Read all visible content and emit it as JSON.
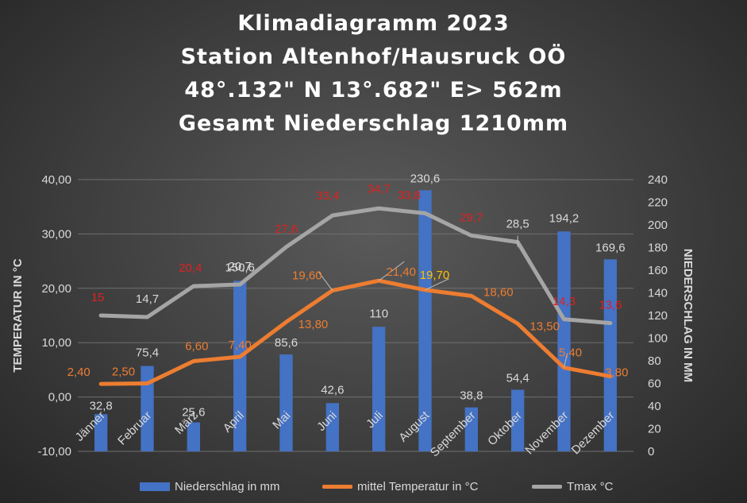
{
  "title_lines": [
    "Klimadiagramm 2023",
    "Station Altenhof/Hausruck OÖ",
    "48°.132\" N 13°.682\" E> 562m",
    "Gesamt Niederschlag 1210mm"
  ],
  "colors": {
    "bar": "#4472c4",
    "temp_line": "#ed7d31",
    "tmax_line": "#a5a5a5",
    "tmax_label": "#e02020",
    "temp_label": "#ed7d31",
    "temp_label_highlight": "#ffc000",
    "axis_text": "#d9d9d9"
  },
  "chart_data": {
    "type": "bar",
    "categories": [
      "Jänner",
      "Februar",
      "März",
      "April",
      "Mai",
      "Juni",
      "Juli",
      "August",
      "September",
      "Oktober",
      "November",
      "Dezember"
    ],
    "y_left": {
      "label": "TEMPERATUR IN °C",
      "min": -10,
      "max": 40,
      "ticks": [
        "-10,00",
        "0,00",
        "10,00",
        "20,00",
        "30,00",
        "40,00"
      ]
    },
    "y_right": {
      "label": "NIEDERSCHLAG IN MM",
      "min": 0,
      "max": 240,
      "ticks": [
        "0",
        "20",
        "40",
        "60",
        "80",
        "100",
        "120",
        "140",
        "160",
        "180",
        "200",
        "220",
        "240"
      ]
    },
    "grid": true,
    "legend_position": "bottom",
    "series": [
      {
        "name": "Niederschlag in mm",
        "type": "bar",
        "axis": "right",
        "values": [
          32.8,
          75.4,
          25.6,
          150.6,
          85.6,
          42.6,
          110,
          230.6,
          38.8,
          54.4,
          194.2,
          169.6
        ],
        "labels": [
          "32,8",
          "75,4",
          "25,6",
          "150,6",
          "85,6",
          "42,6",
          "110",
          "230,6",
          "38,8",
          "54,4",
          "194,2",
          "169,6"
        ]
      },
      {
        "name": "mittel Temperatur in °C",
        "type": "line",
        "axis": "left",
        "values": [
          2.4,
          2.5,
          6.6,
          7.4,
          13.8,
          19.6,
          21.4,
          19.7,
          18.6,
          13.5,
          5.4,
          3.8
        ],
        "labels": [
          "2,40",
          "2,50",
          "6,60",
          "7,40",
          "13,80",
          "19,60",
          "21,40",
          "19,70",
          "18,60",
          "13,50",
          "5,40",
          "3,80"
        ]
      },
      {
        "name": "Tmax °C",
        "type": "line",
        "axis": "left",
        "values": [
          15,
          14.7,
          20.4,
          20.7,
          27.6,
          33.4,
          34.7,
          33.8,
          29.7,
          28.5,
          14.3,
          13.6
        ],
        "labels": [
          "15",
          "14,7",
          "20,4",
          "20,7",
          "27,6",
          "33,4",
          "34,7",
          "33,8",
          "29,7",
          "28,5",
          "14,3",
          "13,6"
        ]
      }
    ]
  },
  "legend": {
    "bar": "Niederschlag in mm",
    "temp": "mittel Temperatur in °C",
    "tmax": "Tmax °C"
  }
}
